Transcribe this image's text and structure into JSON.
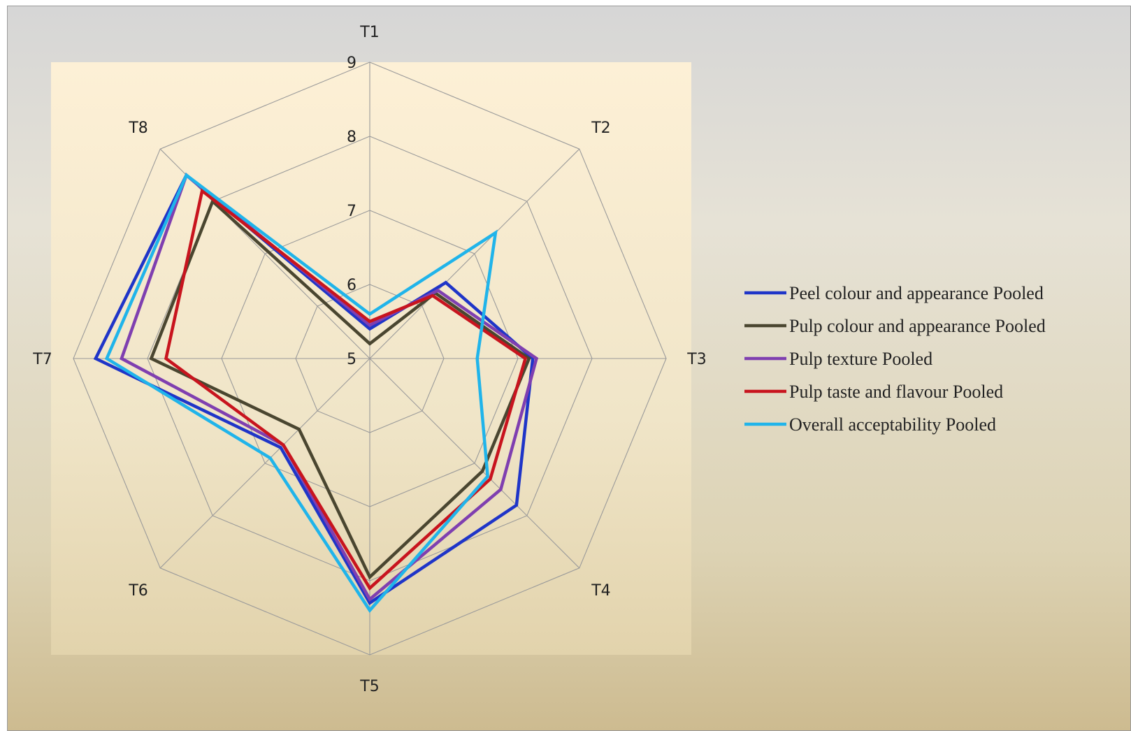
{
  "chart_data": {
    "type": "radar",
    "axes": [
      "T1",
      "T2",
      "T3",
      "T4",
      "T5",
      "T6",
      "T7",
      "T8"
    ],
    "rlim": [
      5,
      9
    ],
    "rticks": [
      "5",
      "6",
      "7",
      "8",
      "9"
    ],
    "grid": true,
    "legend_position": "right",
    "series": [
      {
        "name": "Peel colour and appearance Pooled",
        "color": "#1f35c8",
        "values": [
          5.4,
          6.45,
          7.2,
          7.8,
          8.3,
          6.7,
          8.7,
          8.5
        ]
      },
      {
        "name": "Pulp colour and appearance Pooled",
        "color": "#4a4630",
        "values": [
          5.2,
          6.25,
          7.15,
          7.15,
          7.95,
          6.35,
          7.95,
          8.0
        ]
      },
      {
        "name": "Pulp texture Pooled",
        "color": "#7f3fb0",
        "values": [
          5.45,
          6.3,
          7.25,
          7.5,
          8.25,
          6.65,
          8.35,
          8.5
        ]
      },
      {
        "name": "Pulp taste and flavour Pooled",
        "color": "#c8141e",
        "values": [
          5.5,
          6.2,
          7.1,
          7.3,
          8.1,
          6.65,
          7.75,
          8.2
        ]
      },
      {
        "name": "Overall acceptability Pooled",
        "color": "#20b4ea",
        "values": [
          5.6,
          7.4,
          6.45,
          7.25,
          8.4,
          6.9,
          8.55,
          8.5
        ]
      }
    ]
  }
}
